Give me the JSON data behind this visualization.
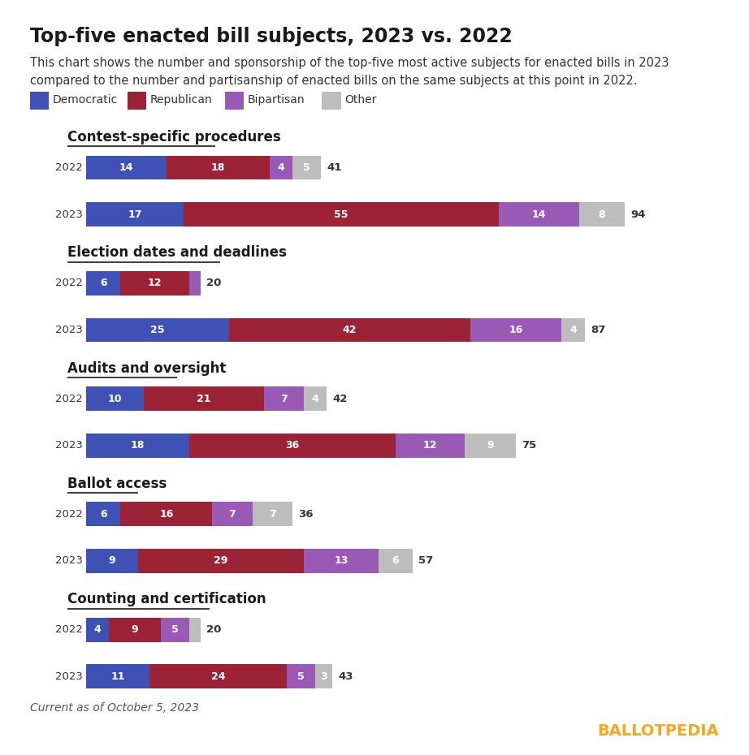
{
  "title": "Top-five enacted bill subjects, 2023 vs. 2022",
  "subtitle": "This chart shows the number and sponsorship of the top-five most active subjects for enacted bills in 2023\ncompared to the number and partisanship of enacted bills on the same subjects at this point in 2022.",
  "footer": "Current as of October 5, 2023",
  "colors": {
    "democratic": "#3F51B5",
    "republican": "#9B2335",
    "bipartisan": "#9B59B6",
    "other": "#BDBDBD"
  },
  "legend": [
    "Democratic",
    "Republican",
    "Bipartisan",
    "Other"
  ],
  "categories": [
    {
      "title": "Contest-specific procedures",
      "rows": [
        {
          "year": "2022",
          "dem": 14,
          "rep": 18,
          "bip": 4,
          "oth": 5,
          "total": 41
        },
        {
          "year": "2023",
          "dem": 17,
          "rep": 55,
          "bip": 14,
          "oth": 8,
          "total": 94
        }
      ]
    },
    {
      "title": "Election dates and deadlines",
      "rows": [
        {
          "year": "2022",
          "dem": 6,
          "rep": 12,
          "bip": 2,
          "oth": 0,
          "total": 20
        },
        {
          "year": "2023",
          "dem": 25,
          "rep": 42,
          "bip": 16,
          "oth": 4,
          "total": 87
        }
      ]
    },
    {
      "title": "Audits and oversight",
      "rows": [
        {
          "year": "2022",
          "dem": 10,
          "rep": 21,
          "bip": 7,
          "oth": 4,
          "total": 42
        },
        {
          "year": "2023",
          "dem": 18,
          "rep": 36,
          "bip": 12,
          "oth": 9,
          "total": 75
        }
      ]
    },
    {
      "title": "Ballot access",
      "rows": [
        {
          "year": "2022",
          "dem": 6,
          "rep": 16,
          "bip": 7,
          "oth": 7,
          "total": 36
        },
        {
          "year": "2023",
          "dem": 9,
          "rep": 29,
          "bip": 13,
          "oth": 6,
          "total": 57
        }
      ]
    },
    {
      "title": "Counting and certification",
      "rows": [
        {
          "year": "2022",
          "dem": 4,
          "rep": 9,
          "bip": 5,
          "oth": 2,
          "total": 20
        },
        {
          "year": "2023",
          "dem": 11,
          "rep": 24,
          "bip": 5,
          "oth": 3,
          "total": 43
        }
      ]
    }
  ],
  "background_color": "#FFFFFF",
  "title_color": "#1a1a1a",
  "subtitle_color": "#333333",
  "ballotpedia_color": "#F5A623",
  "ballotpedia_text": "BALLOTPEDIA"
}
